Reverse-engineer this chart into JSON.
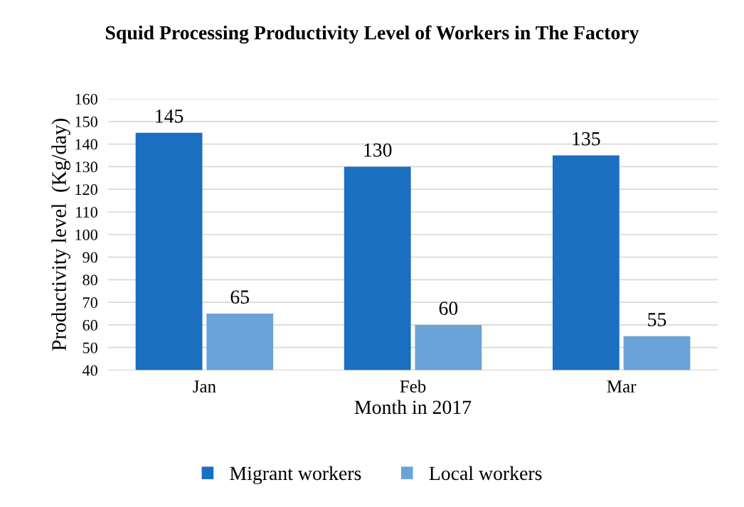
{
  "chart_data": {
    "type": "bar",
    "title": "Squid Processing Productivity Level of Workers in The Factory",
    "xlabel": "Month in 2017",
    "ylabel": "Productivity level  (Kg/day)",
    "categories": [
      "Jan",
      "Feb",
      "Mar"
    ],
    "series": [
      {
        "name": "Migrant workers",
        "color": "#1a6fc0",
        "values": [
          145,
          130,
          135
        ]
      },
      {
        "name": "Local workers",
        "color": "#6aa3d8",
        "values": [
          65,
          60,
          55
        ]
      }
    ],
    "ylim": [
      40,
      160
    ],
    "yticks": [
      40,
      50,
      60,
      70,
      80,
      90,
      100,
      110,
      120,
      130,
      140,
      150,
      160
    ],
    "grid": "y",
    "legend": "bottom",
    "data_labels": true
  }
}
